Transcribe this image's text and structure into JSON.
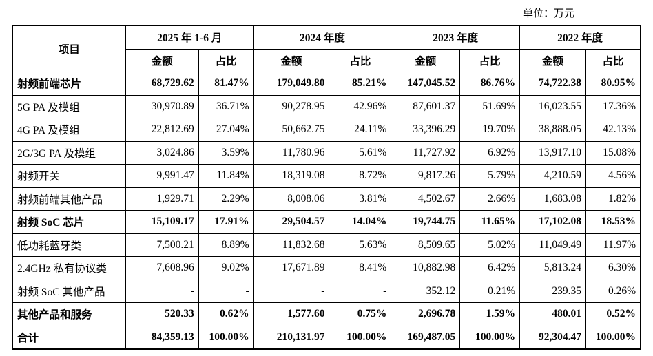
{
  "unit": "单位：万元",
  "table": {
    "header": {
      "item": "项目",
      "periods": [
        {
          "label": "2025 年 1-6 月",
          "columns": [
            "金额",
            "占比"
          ]
        },
        {
          "label": "2024 年度",
          "columns": [
            "金额",
            "占比"
          ]
        },
        {
          "label": "2023 年度",
          "columns": [
            "金额",
            "占比"
          ]
        },
        {
          "label": "2022 年度",
          "columns": [
            "金额",
            "占比"
          ]
        }
      ]
    },
    "rows": [
      {
        "bold": true,
        "cells": [
          "射频前端芯片",
          "68,729.62",
          "81.47%",
          "179,049.80",
          "85.21%",
          "147,045.52",
          "86.76%",
          "74,722.38",
          "80.95%"
        ]
      },
      {
        "bold": false,
        "cells": [
          "5G PA 及模组",
          "30,970.89",
          "36.71%",
          "90,278.95",
          "42.96%",
          "87,601.37",
          "51.69%",
          "16,023.55",
          "17.36%"
        ]
      },
      {
        "bold": false,
        "cells": [
          "4G PA 及模组",
          "22,812.69",
          "27.04%",
          "50,662.75",
          "24.11%",
          "33,396.29",
          "19.70%",
          "38,888.05",
          "42.13%"
        ]
      },
      {
        "bold": false,
        "cells": [
          "2G/3G PA 及模组",
          "3,024.86",
          "3.59%",
          "11,780.96",
          "5.61%",
          "11,727.92",
          "6.92%",
          "13,917.10",
          "15.08%"
        ]
      },
      {
        "bold": false,
        "cells": [
          "射频开关",
          "9,991.47",
          "11.84%",
          "18,319.08",
          "8.72%",
          "9,817.26",
          "5.79%",
          "4,210.59",
          "4.56%"
        ]
      },
      {
        "bold": false,
        "cells": [
          "射频前端其他产品",
          "1,929.71",
          "2.29%",
          "8,008.06",
          "3.81%",
          "4,502.67",
          "2.66%",
          "1,683.08",
          "1.82%"
        ]
      },
      {
        "bold": true,
        "cells": [
          "射频 SoC 芯片",
          "15,109.17",
          "17.91%",
          "29,504.57",
          "14.04%",
          "19,744.75",
          "11.65%",
          "17,102.08",
          "18.53%"
        ]
      },
      {
        "bold": false,
        "cells": [
          "低功耗蓝牙类",
          "7,500.21",
          "8.89%",
          "11,832.68",
          "5.63%",
          "8,509.65",
          "5.02%",
          "11,049.49",
          "11.97%"
        ]
      },
      {
        "bold": false,
        "cells": [
          "2.4GHz 私有协议类",
          "7,608.96",
          "9.02%",
          "17,671.89",
          "8.41%",
          "10,882.98",
          "6.42%",
          "5,813.24",
          "6.30%"
        ]
      },
      {
        "bold": false,
        "cells": [
          "射频 SoC 其他产品",
          "-",
          "-",
          "-",
          "-",
          "352.12",
          "0.21%",
          "239.35",
          "0.26%"
        ]
      },
      {
        "bold": true,
        "cells": [
          "其他产品和服务",
          "520.33",
          "0.62%",
          "1,577.60",
          "0.75%",
          "2,696.78",
          "1.59%",
          "480.01",
          "0.52%"
        ]
      },
      {
        "bold": true,
        "cells": [
          "合计",
          "84,359.13",
          "100.00%",
          "210,131.97",
          "100.00%",
          "169,487.05",
          "100.00%",
          "92,304.47",
          "100.00%"
        ]
      }
    ]
  }
}
